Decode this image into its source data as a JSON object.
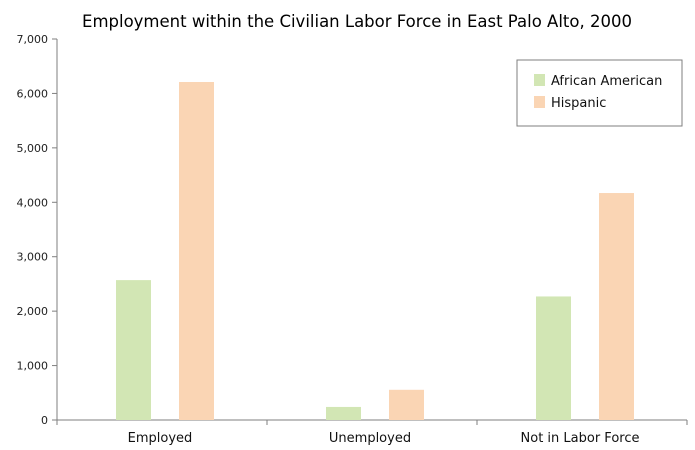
{
  "chart_data": {
    "type": "bar",
    "title": "Employment within the Civilian Labor Force in East Palo Alto, 2000",
    "categories": [
      "Employed",
      "Unemployed",
      "Not in Labor Force"
    ],
    "series": [
      {
        "name": "African American",
        "values": [
          2570,
          240,
          2270
        ],
        "color": "#d2e6b4"
      },
      {
        "name": "Hispanic",
        "values": [
          6210,
          555,
          4170
        ],
        "color": "#fad5b4"
      }
    ],
    "ylim": [
      0,
      7000
    ],
    "yticks": [
      0,
      1000,
      2000,
      3000,
      4000,
      5000,
      6000,
      7000
    ],
    "ytick_labels": [
      "0",
      "1,000",
      "2,000",
      "3,000",
      "4,000",
      "5,000",
      "6,000",
      "7,000"
    ],
    "xlabel": "",
    "ylabel": "",
    "grid": false,
    "legend_position": "top-right"
  }
}
